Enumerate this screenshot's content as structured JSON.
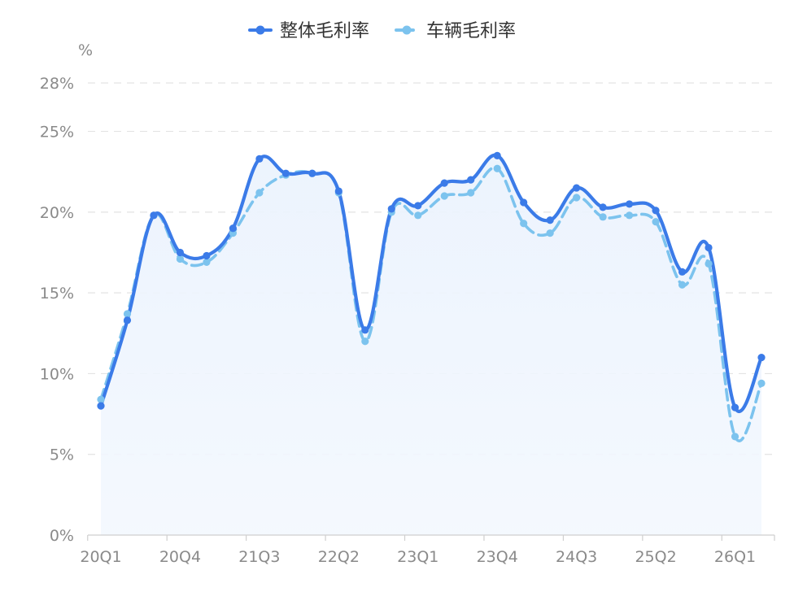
{
  "chart_data": {
    "type": "line",
    "title": "",
    "xlabel": "",
    "ylabel": "%",
    "ylim": [
      0,
      28
    ],
    "yticks": [
      0,
      5,
      10,
      15,
      20,
      25,
      28
    ],
    "ytick_labels": [
      "0%",
      "5%",
      "10%",
      "15%",
      "20%",
      "25%",
      "28%"
    ],
    "categories": [
      "20Q1",
      "20Q2",
      "20Q3",
      "20Q4",
      "21Q1",
      "21Q2",
      "21Q3",
      "21Q4",
      "22Q1",
      "22Q2",
      "22Q3",
      "22Q4",
      "23Q1",
      "23Q2",
      "23Q3",
      "23Q4",
      "24Q1",
      "24Q2",
      "24Q3",
      "24Q4",
      "25Q1",
      "25Q2",
      "25Q3",
      "25Q4",
      "26Q1",
      "26Q2"
    ],
    "xtick_labels": [
      "20Q1",
      "20Q4",
      "21Q3",
      "22Q2",
      "23Q1",
      "23Q4",
      "24Q3",
      "25Q2",
      "26Q1"
    ],
    "grid": true,
    "legend_position": "top-center",
    "series": [
      {
        "name": "整体毛利率",
        "style": "solid",
        "color": "#3b7be8",
        "values": [
          8.0,
          13.3,
          19.8,
          17.5,
          17.3,
          19.0,
          23.3,
          22.4,
          22.4,
          21.3,
          12.7,
          20.2,
          20.4,
          21.8,
          22.0,
          23.5,
          20.6,
          19.5,
          21.5,
          20.3,
          20.5,
          20.1,
          16.3,
          17.8,
          7.9,
          11.0
        ]
      },
      {
        "name": "车辆毛利率",
        "style": "dashed",
        "color": "#7cc3ee",
        "values": [
          8.4,
          13.7,
          19.8,
          17.1,
          16.9,
          18.7,
          21.2,
          22.3,
          22.4,
          21.2,
          12.0,
          20.0,
          19.8,
          21.0,
          21.2,
          22.7,
          19.3,
          18.7,
          20.9,
          19.7,
          19.8,
          19.4,
          15.5,
          16.8,
          6.1,
          9.4
        ]
      }
    ]
  },
  "legend": {
    "items": [
      {
        "label": "整体毛利率"
      },
      {
        "label": "车辆毛利率"
      }
    ]
  }
}
